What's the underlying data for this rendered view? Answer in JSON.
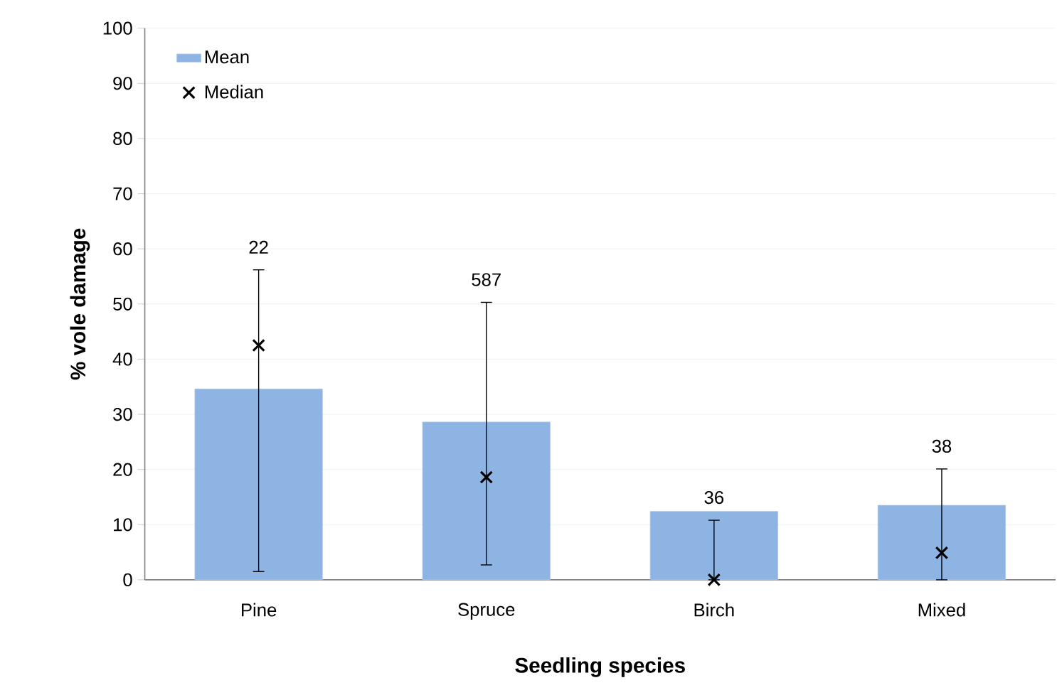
{
  "chart_data": {
    "type": "bar",
    "xlabel": "Seedling species",
    "ylabel": "% vole damage",
    "categories": [
      "Pine",
      "Spruce",
      "Birch",
      "Mixed"
    ],
    "series": [
      {
        "name": "Mean",
        "color": "#8eb4e3",
        "values": [
          34.6,
          28.6,
          12.4,
          13.5
        ]
      },
      {
        "name": "Median",
        "type": "scatter",
        "color": "#000000",
        "marker": "cross",
        "x": [
          "Pine",
          "Spruce",
          "Birch",
          "Mixed"
        ],
        "values": [
          42.5,
          18.6,
          0,
          4.9
        ],
        "errors": [
          [
            1.5,
            56.2
          ],
          [
            2.7,
            50.3
          ],
          [
            0,
            10.8
          ],
          [
            0,
            20.1
          ]
        ]
      }
    ],
    "annotations": [
      "22",
      "587",
      "36",
      "38"
    ],
    "ylim": [
      0,
      100
    ],
    "yticks": [
      0,
      10,
      20,
      30,
      40,
      50,
      60,
      70,
      80,
      90,
      100
    ],
    "grid": "y",
    "legend": "top left"
  }
}
